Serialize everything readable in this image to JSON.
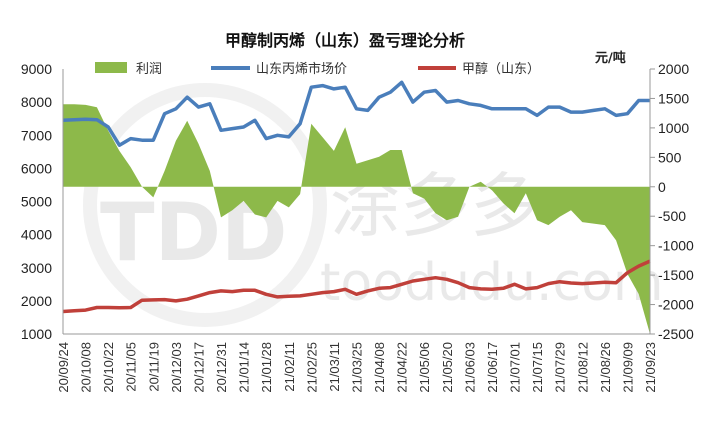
{
  "chart_data": {
    "type": "line",
    "title": "甲醇制丙烯（山东）盈亏理论分析",
    "right_unit": "元/吨",
    "watermark": [
      "TDD",
      "toodudu.com",
      "涂多多"
    ],
    "left_axis": {
      "ylim": [
        1000,
        9000
      ],
      "ticks": [
        9000,
        8000,
        7000,
        6000,
        5000,
        4000,
        3000,
        2000,
        1000
      ]
    },
    "right_axis": {
      "ylim": [
        -2500,
        2000
      ],
      "ticks": [
        2000,
        1500,
        1000,
        500,
        0,
        -500,
        -1000,
        -1500,
        -2000,
        -2500
      ]
    },
    "x_tick_labels": [
      "20/09/24",
      "20/10/08",
      "20/10/22",
      "20/11/05",
      "20/11/19",
      "20/12/03",
      "20/12/17",
      "20/12/31",
      "21/01/14",
      "21/01/28",
      "21/02/11",
      "21/02/25",
      "21/03/11",
      "21/03/25",
      "21/04/08",
      "21/04/22",
      "21/05/06",
      "21/05/20",
      "21/06/03",
      "21/06/17",
      "21/07/01",
      "21/07/15",
      "21/07/29",
      "21/08/12",
      "21/08/26",
      "21/09/09",
      "21/09/23"
    ],
    "x": [
      "20/09/24",
      "20/10/01",
      "20/10/08",
      "20/10/15",
      "20/10/22",
      "20/10/29",
      "20/11/05",
      "20/11/12",
      "20/11/19",
      "20/11/26",
      "20/12/03",
      "20/12/10",
      "20/12/17",
      "20/12/24",
      "20/12/31",
      "21/01/07",
      "21/01/14",
      "21/01/21",
      "21/01/28",
      "21/02/04",
      "21/02/11",
      "21/02/18",
      "21/02/25",
      "21/03/04",
      "21/03/11",
      "21/03/18",
      "21/03/25",
      "21/04/01",
      "21/04/08",
      "21/04/15",
      "21/04/22",
      "21/04/29",
      "21/05/06",
      "21/05/13",
      "21/05/20",
      "21/05/27",
      "21/06/03",
      "21/06/10",
      "21/06/17",
      "21/06/24",
      "21/07/01",
      "21/07/08",
      "21/07/15",
      "21/07/22",
      "21/07/29",
      "21/08/05",
      "21/08/12",
      "21/08/19",
      "21/08/26",
      "21/09/02",
      "21/09/09",
      "21/09/16",
      "21/09/23"
    ],
    "series": [
      {
        "name": "利润",
        "kind": "area",
        "axis": "right",
        "color": "#8DB94A",
        "values": [
          1400,
          1400,
          1390,
          1350,
          950,
          610,
          330,
          0,
          -180,
          270,
          780,
          1120,
          730,
          270,
          -520,
          -400,
          -240,
          -470,
          -520,
          -240,
          -350,
          -125,
          1070,
          840,
          610,
          1010,
          390,
          450,
          510,
          625,
          625,
          -110,
          -200,
          -450,
          -570,
          -510,
          0,
          85,
          -60,
          -280,
          -450,
          -110,
          -570,
          -650,
          -510,
          -400,
          -600,
          -625,
          -650,
          -910,
          -1480,
          -1820,
          -2500
        ]
      },
      {
        "name": "山东丙烯市场价",
        "kind": "line",
        "axis": "left",
        "color": "#4A7EBB",
        "values": [
          7450,
          7470,
          7480,
          7470,
          7250,
          6700,
          6900,
          6850,
          6850,
          7650,
          7800,
          8150,
          7850,
          7950,
          7150,
          7200,
          7250,
          7450,
          6900,
          7000,
          6950,
          7350,
          8450,
          8500,
          8400,
          8450,
          7800,
          7750,
          8150,
          8300,
          8600,
          8000,
          8300,
          8350,
          8000,
          8050,
          7950,
          7900,
          7800,
          7800,
          7800,
          7800,
          7600,
          7850,
          7850,
          7700,
          7700,
          7750,
          7800,
          7600,
          7650,
          8050,
          8050
        ]
      },
      {
        "name": "甲醇（山东）",
        "kind": "line",
        "axis": "left",
        "color": "#C0403A",
        "values": [
          1680,
          1700,
          1720,
          1800,
          1800,
          1790,
          1800,
          2020,
          2030,
          2040,
          2000,
          2050,
          2150,
          2250,
          2300,
          2280,
          2320,
          2320,
          2200,
          2120,
          2140,
          2150,
          2200,
          2250,
          2280,
          2350,
          2200,
          2300,
          2380,
          2400,
          2500,
          2600,
          2650,
          2700,
          2650,
          2550,
          2400,
          2360,
          2350,
          2380,
          2500,
          2360,
          2400,
          2520,
          2580,
          2540,
          2520,
          2540,
          2560,
          2550,
          2850,
          3050,
          3200
        ]
      }
    ]
  }
}
